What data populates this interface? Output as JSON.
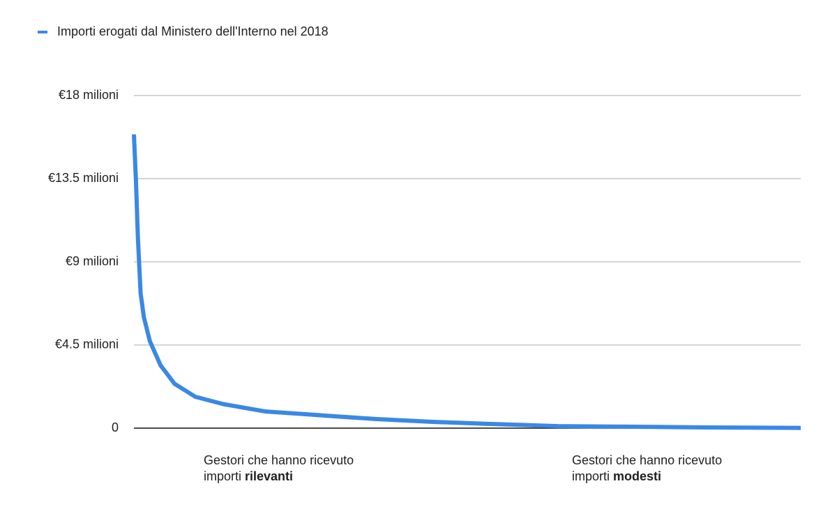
{
  "chart_data": {
    "type": "line",
    "series": [
      {
        "name": "Importi erogati dal Ministero dell'Interno nel 2018",
        "color": "#3a88e6",
        "x": [
          0,
          0.3,
          0.6,
          1.0,
          1.5,
          2.4,
          4.0,
          6.1,
          9.2,
          13.4,
          19.7,
          25.9,
          30.1,
          36.4,
          44.8,
          53.1,
          63.6,
          74.1,
          84.5,
          100
        ],
        "values": [
          15.9,
          13.4,
          10.3,
          7.3,
          6.0,
          4.7,
          3.4,
          2.4,
          1.7,
          1.3,
          0.9,
          0.75,
          0.64,
          0.49,
          0.34,
          0.23,
          0.11,
          0.08,
          0.04,
          0.01
        ]
      }
    ],
    "xlim": [
      0,
      100
    ],
    "ylim": [
      0,
      18
    ],
    "yticks": [
      {
        "value": 0,
        "label": "0"
      },
      {
        "value": 4.5,
        "label": "€4.5 milioni"
      },
      {
        "value": 9,
        "label": "€9 milioni"
      },
      {
        "value": 13.5,
        "label": "€13.5 milioni"
      },
      {
        "value": 18,
        "label": "€18 milioni"
      }
    ],
    "grid": true,
    "legend": "top-left",
    "annotations": [
      {
        "line1": "Gestori che hanno ricevuto",
        "line2": "importi",
        "bold": "rilevanti"
      },
      {
        "line1": "Gestori che hanno ricevuto",
        "line2": "importi",
        "bold": "modesti"
      }
    ]
  }
}
